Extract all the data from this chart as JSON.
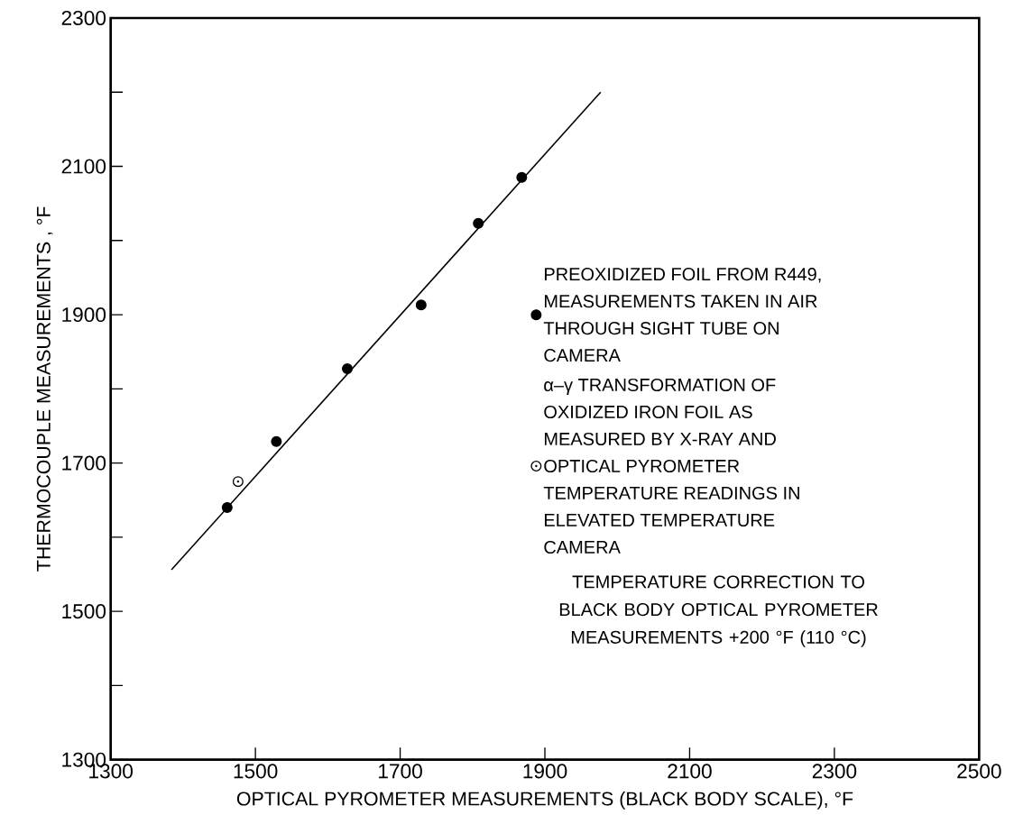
{
  "chart_data": {
    "type": "scatter",
    "xlabel": "OPTICAL PYROMETER MEASUREMENTS (BLACK BODY SCALE), °F",
    "ylabel": "THERMOCOUPLE MEASUREMENTS , °F",
    "xlim": [
      1300,
      2500
    ],
    "ylim": [
      1300,
      2300
    ],
    "xticks": [
      1300,
      1500,
      1700,
      1900,
      2100,
      2300,
      2500
    ],
    "yticks": [
      1300,
      {
        "value": 1400,
        "label": null
      },
      1500,
      {
        "value": 1600,
        "label": null
      },
      1700,
      {
        "value": 1800,
        "label": null
      },
      1900,
      {
        "value": 2000,
        "label": null
      },
      2100,
      {
        "value": 2200,
        "label": null
      },
      2300
    ],
    "series": [
      {
        "name": "PREOXIDIZED FOIL FROM R449, MEASUREMENTS TAKEN IN AIR THROUGH SIGHT TUBE ON CAMERA",
        "marker": "circle",
        "color": "#000000",
        "x": [
          1461,
          1529,
          1627,
          1729,
          1808,
          1868
        ],
        "values": [
          1640,
          1729,
          1827,
          1913,
          2023,
          2085
        ]
      },
      {
        "type": "line",
        "marker": "none",
        "color": "#000000",
        "x": [
          1384,
          1977
        ],
        "values": [
          1556,
          2200
        ]
      },
      {
        "name": "α–γ TRANSFORMATION OF OXIDIZED IRON FOIL AS MEASURED BY X-RAY AND OPTICAL PYROMETER TEMPERATURE READINGS IN ELEVATED TEMPERATURE CAMERA",
        "marker": "circle",
        "color": "#000000",
        "x": [
          1476
        ],
        "values": [
          1675
        ]
      }
    ],
    "legend": "right",
    "annotations": [
      "TEMPERATURE CORRECTION TO BLACK BODY OPTICAL PYROMETER MEASUREMENTS +200 °F (110 °C)"
    ]
  }
}
